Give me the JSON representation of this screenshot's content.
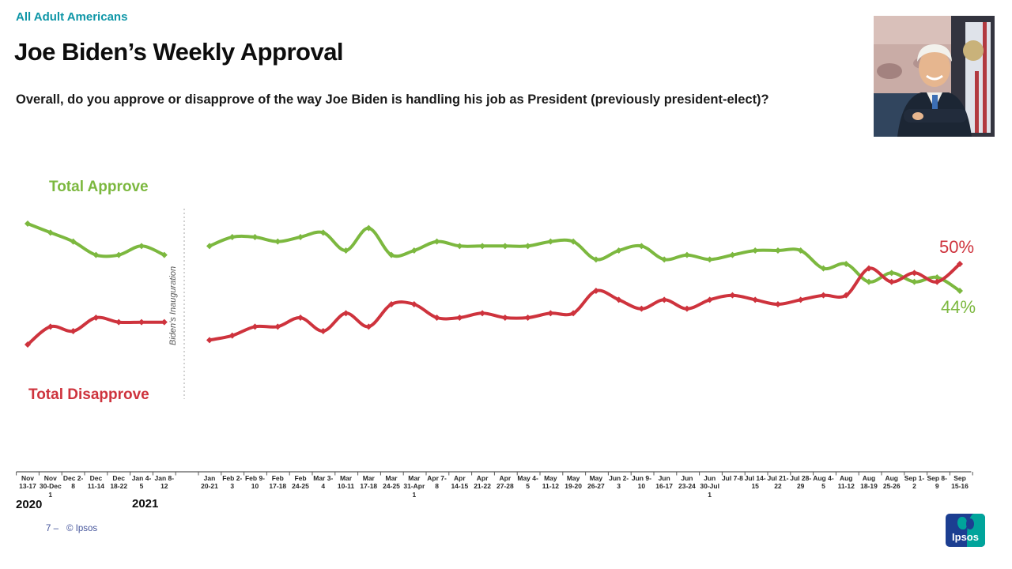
{
  "slide": {
    "eyebrow": "All Adult Americans",
    "title": "Joe Biden’s Weekly Approval",
    "question": "Overall, do you approve or disapprove of the way Joe Biden is handling his job as President (previously president-elect)?",
    "footer": {
      "page_marker": "7 –",
      "copyright": "© Ipsos"
    },
    "logo_text": "Ipsos"
  },
  "chart_data": {
    "type": "line",
    "title": "",
    "legend": {
      "approve_label": "Total Approve",
      "disapprove_label": "Total Disapprove"
    },
    "annotation": "Biden’s Inauguration",
    "end_labels": {
      "disapprove": "50%",
      "approve": "44%"
    },
    "years": [
      "2020",
      "2021"
    ],
    "colors": {
      "approve": "#7CB83F",
      "disapprove": "#CE333D"
    },
    "ylim": [
      28,
      62
    ],
    "grid": false,
    "legend_position": "inline-left",
    "segments": [
      {
        "name": "pre-inauguration",
        "categories": [
          "Nov 13-17",
          "Nov 30-Dec 1",
          "Dec 2-8",
          "Dec 11-14",
          "Dec 18-22",
          "Jan 4-5",
          "Jan 8-12"
        ],
        "series": [
          {
            "name": "Total Approve",
            "values": [
              59,
              57,
              55,
              52,
              52,
              54,
              52
            ]
          },
          {
            "name": "Total Disapprove",
            "values": [
              32,
              36,
              35,
              38,
              37,
              37,
              37
            ]
          }
        ]
      },
      {
        "name": "post-inauguration",
        "categories": [
          "Jan 20-21",
          "Feb 2-3",
          "Feb 9-10",
          "Feb 17-18",
          "Feb 24-25",
          "Mar 3-4",
          "Mar 10-11",
          "Mar 17-18",
          "Mar 24-25",
          "Mar 31-Apr 1",
          "Apr 7-8",
          "Apr 14-15",
          "Apr 21-22",
          "Apr 27-28",
          "May 4-5",
          "May 11-12",
          "May 19-20",
          "May 26-27",
          "Jun 2-3",
          "Jun 9-10",
          "Jun 16-17",
          "Jun 23-24",
          "Jun 30-Jul 1",
          "Jul 7-8",
          "Jul 14-15",
          "Jul 21-22",
          "Jul 28-29",
          "Aug 4-5",
          "Aug 11-12",
          "Aug 18-19",
          "Aug 25-26",
          "Sep 1-2",
          "Sep 8-9",
          "Sep 15-16"
        ],
        "series": [
          {
            "name": "Total Approve",
            "values": [
              54,
              56,
              56,
              55,
              56,
              57,
              53,
              58,
              52,
              53,
              55,
              54,
              54,
              54,
              54,
              55,
              55,
              51,
              53,
              54,
              51,
              52,
              51,
              52,
              53,
              53,
              53,
              49,
              50,
              46,
              48,
              46,
              47,
              44
            ]
          },
          {
            "name": "Total Disapprove",
            "values": [
              33,
              34,
              36,
              36,
              38,
              35,
              39,
              36,
              41,
              41,
              38,
              38,
              39,
              38,
              38,
              39,
              39,
              44,
              42,
              40,
              42,
              40,
              42,
              43,
              42,
              41,
              42,
              43,
              43,
              49,
              46,
              48,
              46,
              50
            ]
          }
        ]
      }
    ]
  }
}
